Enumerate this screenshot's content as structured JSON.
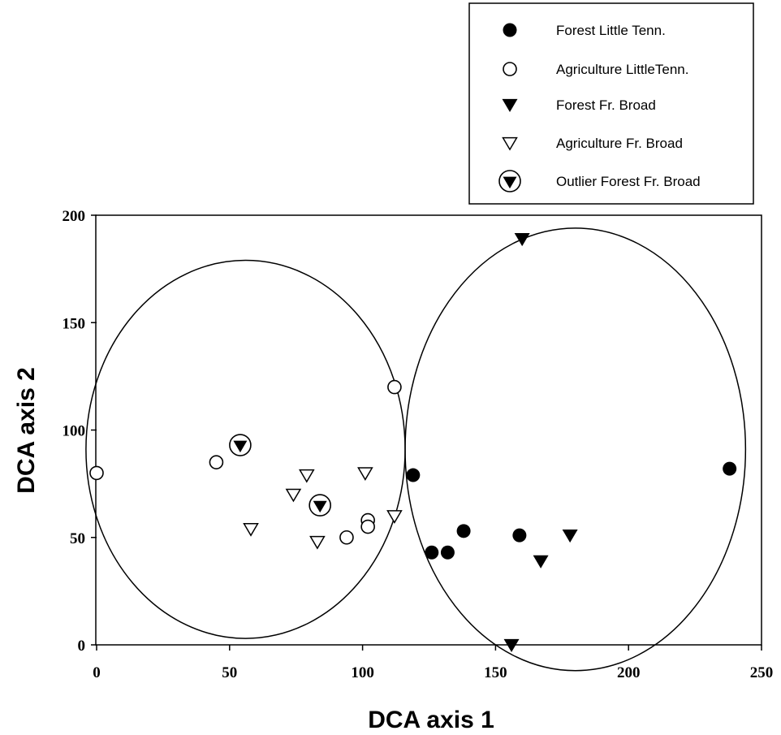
{
  "chart_data": {
    "type": "scatter",
    "title": "",
    "xlabel": "DCA axis 1",
    "ylabel": "DCA axis 2",
    "xlim": [
      0,
      250
    ],
    "ylim": [
      0,
      200
    ],
    "xticks": [
      "0",
      "50",
      "100",
      "150",
      "200",
      "250"
    ],
    "yticks": [
      "0",
      "50",
      "100",
      "150",
      "200"
    ],
    "grid": false,
    "legend_position": "top-right (outside plot)",
    "series": [
      {
        "name": "Forest Little Tenn.",
        "marker": "filled-circle",
        "points": [
          [
            119,
            79
          ],
          [
            126,
            43
          ],
          [
            132,
            43
          ],
          [
            138,
            53
          ],
          [
            159,
            51
          ],
          [
            238,
            82
          ]
        ]
      },
      {
        "name": "Agriculture LittleTenn.",
        "marker": "open-circle",
        "points": [
          [
            0,
            80
          ],
          [
            45,
            85
          ],
          [
            112,
            120
          ],
          [
            102,
            58
          ],
          [
            102,
            55
          ],
          [
            94,
            50
          ]
        ]
      },
      {
        "name": "Forest Fr. Broad",
        "marker": "filled-triangle",
        "points": [
          [
            160,
            189
          ],
          [
            178,
            51
          ],
          [
            167,
            39
          ],
          [
            156,
            0
          ]
        ]
      },
      {
        "name": "Agriculture Fr. Broad",
        "marker": "open-triangle",
        "points": [
          [
            79,
            79
          ],
          [
            101,
            80
          ],
          [
            74,
            70
          ],
          [
            58,
            54
          ],
          [
            83,
            48
          ],
          [
            112,
            60
          ]
        ]
      },
      {
        "name": "Outlier Forest  Fr. Broad",
        "marker": "circled-filled-triangle",
        "points": [
          [
            54,
            93
          ],
          [
            84,
            65
          ]
        ]
      }
    ],
    "ellipses": [
      {
        "cx": 56,
        "cy": 91,
        "rx": 60,
        "ry": 88
      },
      {
        "cx": 180,
        "cy": 91,
        "rx": 64,
        "ry": 103
      }
    ]
  }
}
